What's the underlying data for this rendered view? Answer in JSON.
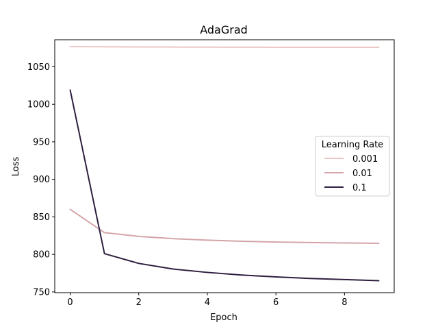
{
  "chart_data": {
    "type": "line",
    "title": "AdaGrad",
    "xlabel": "Epoch",
    "ylabel": "Loss",
    "xlim": [
      -0.45,
      9.45
    ],
    "ylim": [
      749,
      1086
    ],
    "xticks": [
      0,
      2,
      4,
      6,
      8
    ],
    "yticks": [
      750,
      800,
      850,
      900,
      950,
      1000,
      1050
    ],
    "grid": false,
    "legend": {
      "title": "Learning Rate",
      "position": "center-right"
    },
    "x": [
      0,
      1,
      2,
      3,
      4,
      5,
      6,
      7,
      8,
      9
    ],
    "series": [
      {
        "name": "0.001",
        "color": "#ebc8c5",
        "values": [
          1077,
          1076.6,
          1076.4,
          1076.3,
          1076.2,
          1076.1,
          1076.0,
          1076.0,
          1075.9,
          1075.9
        ]
      },
      {
        "name": "0.01",
        "color": "#d4a4a9",
        "values": [
          860,
          829,
          824,
          821,
          819,
          817.5,
          816.5,
          815.8,
          815.2,
          814.8
        ]
      },
      {
        "name": "0.1",
        "color": "#2d1e3e",
        "values": [
          1019,
          801,
          788,
          780.5,
          776,
          772.5,
          770,
          768,
          766.5,
          765
        ]
      }
    ]
  }
}
